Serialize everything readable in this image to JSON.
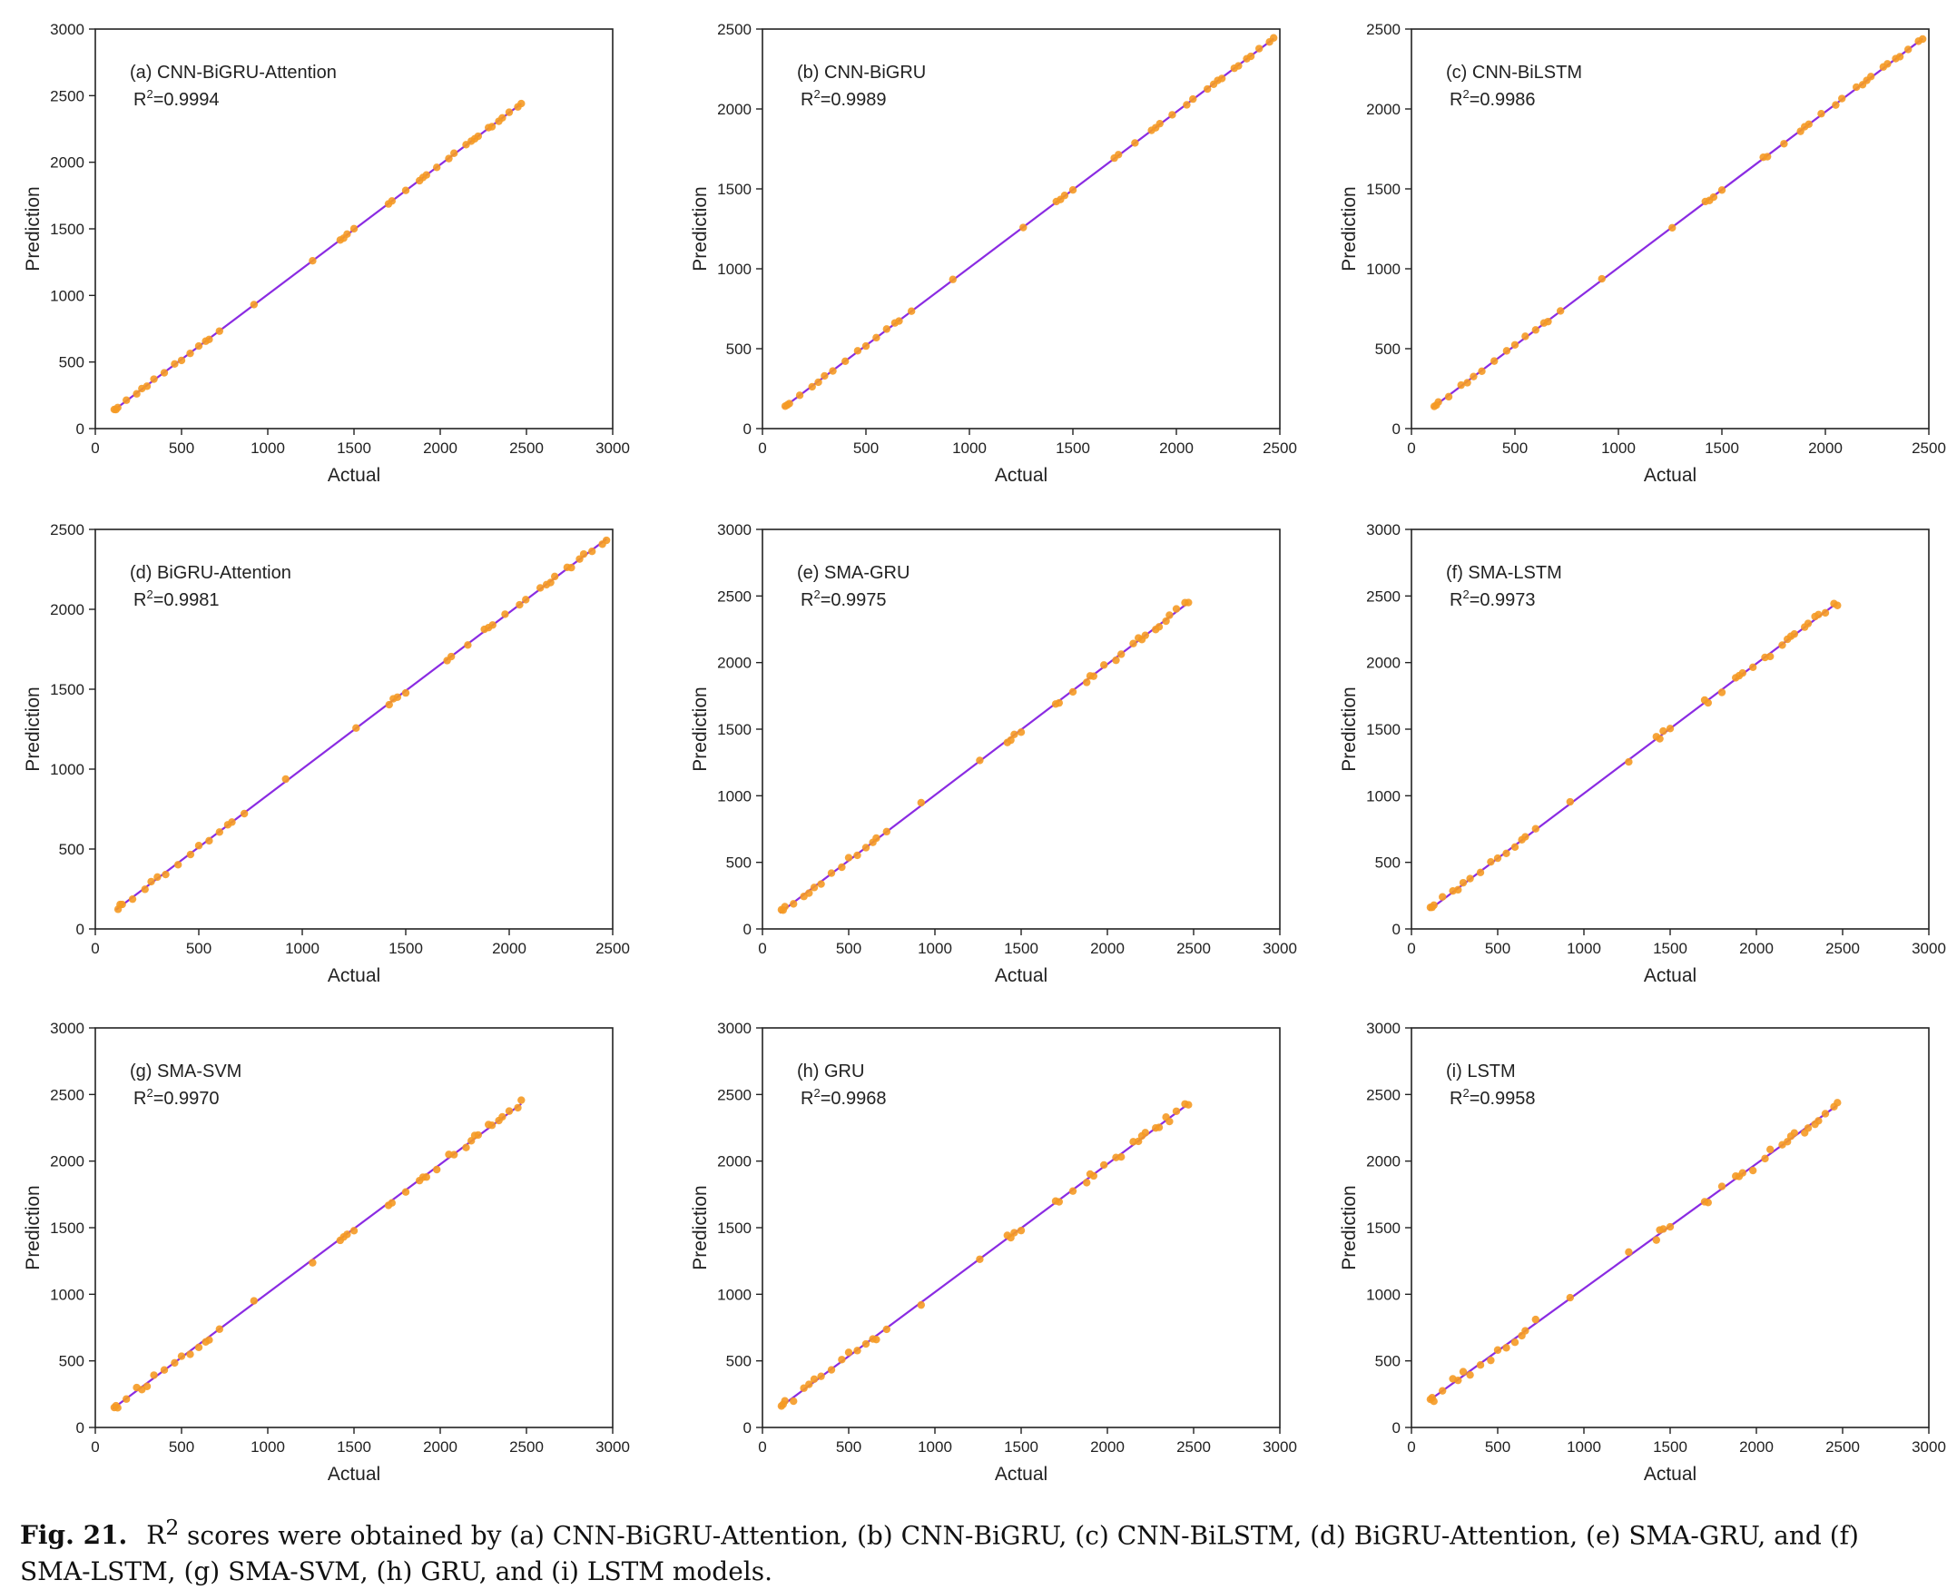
{
  "caption": {
    "fig_label": "Fig. 21.",
    "r": "R",
    "sup": "2",
    "text": " scores were obtained by (a) CNN-BiGRU-Attention, (b) CNN-BiGRU, (c) CNN-BiLSTM, (d) BiGRU-Attention, (e) SMA-GRU, and (f) SMA-LSTM, (g) SMA-SVM, (h) GRU, and (i) LSTM models."
  },
  "colors": {
    "fit_line": "#8a2be2",
    "points": "#f59a23",
    "axis": "#222222"
  },
  "chart_data": [
    {
      "id": "a",
      "type": "scatter",
      "title": "(a) CNN-BiGRU-Attention",
      "r2": "0.9994",
      "xlabel": "Actual",
      "ylabel": "Prediction",
      "xlim": [
        0,
        3000
      ],
      "ylim": [
        0,
        3000
      ],
      "xticks": [
        0,
        500,
        1000,
        1500,
        2000,
        2500,
        3000
      ],
      "yticks": [
        0,
        500,
        1000,
        1500,
        2000,
        2500,
        3000
      ],
      "fit": [
        [
          100,
          130
        ],
        [
          2470,
          2440
        ]
      ],
      "noise": 8,
      "x": [
        110,
        120,
        130,
        180,
        240,
        270,
        300,
        340,
        400,
        460,
        500,
        550,
        600,
        640,
        660,
        720,
        920,
        1260,
        1420,
        1440,
        1460,
        1500,
        1700,
        1720,
        1800,
        1880,
        1900,
        1920,
        1980,
        2050,
        2080,
        2150,
        2180,
        2200,
        2220,
        2280,
        2300,
        2340,
        2360,
        2400,
        2450,
        2470
      ]
    },
    {
      "id": "b",
      "type": "scatter",
      "title": "(b) CNN-BiGRU",
      "r2": "0.9989",
      "xlabel": "Actual",
      "ylabel": "Prediction",
      "xlim": [
        0,
        2500
      ],
      "ylim": [
        0,
        2500
      ],
      "xticks": [
        0,
        500,
        1000,
        1500,
        2000,
        2500
      ],
      "yticks": [
        0,
        500,
        1000,
        1500,
        2000,
        2500
      ],
      "fit": [
        [
          100,
          130
        ],
        [
          2470,
          2440
        ]
      ],
      "noise": 6,
      "x": [
        110,
        120,
        130,
        180,
        240,
        270,
        300,
        340,
        400,
        460,
        500,
        550,
        600,
        640,
        660,
        720,
        920,
        1260,
        1420,
        1440,
        1460,
        1500,
        1700,
        1720,
        1800,
        1880,
        1900,
        1920,
        1980,
        2050,
        2080,
        2150,
        2180,
        2200,
        2220,
        2280,
        2300,
        2340,
        2360,
        2400,
        2450,
        2470
      ]
    },
    {
      "id": "c",
      "type": "scatter",
      "title": "(c) CNN-BiLSTM",
      "r2": "0.9986",
      "xlabel": "Actual",
      "ylabel": "Prediction",
      "xlim": [
        0,
        2500
      ],
      "ylim": [
        0,
        2500
      ],
      "xticks": [
        0,
        500,
        1000,
        1500,
        2000,
        2500
      ],
      "yticks": [
        0,
        500,
        1000,
        1500,
        2000,
        2500
      ],
      "fit": [
        [
          100,
          130
        ],
        [
          2470,
          2440
        ]
      ],
      "noise": 9,
      "x": [
        110,
        120,
        130,
        180,
        240,
        270,
        300,
        340,
        400,
        460,
        500,
        550,
        600,
        640,
        660,
        720,
        920,
        1260,
        1420,
        1440,
        1460,
        1500,
        1700,
        1720,
        1800,
        1880,
        1900,
        1920,
        1980,
        2050,
        2080,
        2150,
        2180,
        2200,
        2220,
        2280,
        2300,
        2340,
        2360,
        2400,
        2450,
        2470
      ]
    },
    {
      "id": "d",
      "type": "scatter",
      "title": "(d) BiGRU-Attention",
      "r2": "0.9981",
      "xlabel": "Actual",
      "ylabel": "Prediction",
      "xlim": [
        0,
        2500
      ],
      "ylim": [
        0,
        2500
      ],
      "xticks": [
        0,
        500,
        1000,
        1500,
        2000,
        2500
      ],
      "yticks": [
        0,
        500,
        1000,
        1500,
        2000,
        2500
      ],
      "fit": [
        [
          100,
          120
        ],
        [
          2470,
          2440
        ]
      ],
      "noise": 15,
      "x": [
        110,
        120,
        130,
        180,
        240,
        270,
        300,
        340,
        400,
        460,
        500,
        550,
        600,
        640,
        660,
        720,
        920,
        1260,
        1420,
        1440,
        1460,
        1500,
        1700,
        1720,
        1800,
        1880,
        1900,
        1920,
        1980,
        2050,
        2080,
        2150,
        2180,
        2200,
        2220,
        2280,
        2300,
        2340,
        2360,
        2400,
        2450,
        2470
      ]
    },
    {
      "id": "e",
      "type": "scatter",
      "title": "(e) SMA-GRU",
      "r2": "0.9975",
      "xlabel": "Actual",
      "ylabel": "Prediction",
      "xlim": [
        0,
        3000
      ],
      "ylim": [
        0,
        3000
      ],
      "xticks": [
        0,
        500,
        1000,
        1500,
        2000,
        2500,
        3000
      ],
      "yticks": [
        0,
        500,
        1000,
        1500,
        2000,
        2500,
        3000
      ],
      "fit": [
        [
          100,
          120
        ],
        [
          2470,
          2450
        ]
      ],
      "noise": 22,
      "x": [
        110,
        120,
        130,
        180,
        240,
        270,
        300,
        340,
        400,
        460,
        500,
        550,
        600,
        640,
        660,
        720,
        920,
        1260,
        1420,
        1440,
        1460,
        1500,
        1700,
        1720,
        1800,
        1880,
        1900,
        1920,
        1980,
        2050,
        2080,
        2150,
        2180,
        2200,
        2220,
        2280,
        2300,
        2340,
        2360,
        2400,
        2450,
        2470
      ]
    },
    {
      "id": "f",
      "type": "scatter",
      "title": "(f) SMA-LSTM",
      "r2": "0.9973",
      "xlabel": "Actual",
      "ylabel": "Prediction",
      "xlim": [
        0,
        3000
      ],
      "ylim": [
        0,
        3000
      ],
      "xticks": [
        0,
        500,
        1000,
        1500,
        2000,
        2500,
        3000
      ],
      "yticks": [
        0,
        500,
        1000,
        1500,
        2000,
        2500,
        3000
      ],
      "fit": [
        [
          100,
          140
        ],
        [
          2470,
          2450
        ]
      ],
      "noise": 24,
      "x": [
        110,
        120,
        130,
        180,
        240,
        270,
        300,
        340,
        400,
        460,
        500,
        550,
        600,
        640,
        660,
        720,
        920,
        1260,
        1420,
        1440,
        1460,
        1500,
        1700,
        1720,
        1800,
        1880,
        1900,
        1920,
        1980,
        2050,
        2080,
        2150,
        2180,
        2200,
        2220,
        2280,
        2300,
        2340,
        2360,
        2400,
        2450,
        2470
      ]
    },
    {
      "id": "g",
      "type": "scatter",
      "title": "(g) SMA-SVM",
      "r2": "0.9970",
      "xlabel": "Actual",
      "ylabel": "Prediction",
      "xlim": [
        0,
        3000
      ],
      "ylim": [
        0,
        3000
      ],
      "xticks": [
        0,
        500,
        1000,
        1500,
        2000,
        2500,
        3000
      ],
      "yticks": [
        0,
        500,
        1000,
        1500,
        2000,
        2500,
        3000
      ],
      "fit": [
        [
          100,
          140
        ],
        [
          2470,
          2430
        ]
      ],
      "noise": 28,
      "x": [
        110,
        120,
        130,
        180,
        240,
        270,
        300,
        340,
        400,
        460,
        500,
        550,
        600,
        640,
        660,
        720,
        920,
        1260,
        1420,
        1440,
        1460,
        1500,
        1700,
        1720,
        1800,
        1880,
        1900,
        1920,
        1980,
        2050,
        2080,
        2150,
        2180,
        2200,
        2220,
        2280,
        2300,
        2340,
        2360,
        2400,
        2450,
        2470
      ]
    },
    {
      "id": "h",
      "type": "scatter",
      "title": "(h) GRU",
      "r2": "0.9968",
      "xlabel": "Actual",
      "ylabel": "Prediction",
      "xlim": [
        0,
        3000
      ],
      "ylim": [
        0,
        3000
      ],
      "xticks": [
        0,
        500,
        1000,
        1500,
        2000,
        2500,
        3000
      ],
      "yticks": [
        0,
        500,
        1000,
        1500,
        2000,
        2500,
        3000
      ],
      "fit": [
        [
          100,
          150
        ],
        [
          2470,
          2430
        ]
      ],
      "noise": 30,
      "x": [
        110,
        120,
        130,
        180,
        240,
        270,
        300,
        340,
        400,
        460,
        500,
        550,
        600,
        640,
        660,
        720,
        920,
        1260,
        1420,
        1440,
        1460,
        1500,
        1700,
        1720,
        1800,
        1880,
        1900,
        1920,
        1980,
        2050,
        2080,
        2150,
        2180,
        2200,
        2220,
        2280,
        2300,
        2340,
        2360,
        2400,
        2450,
        2470
      ]
    },
    {
      "id": "i",
      "type": "scatter",
      "title": "(i) LSTM",
      "r2": "0.9958",
      "xlabel": "Actual",
      "ylabel": "Prediction",
      "xlim": [
        0,
        3000
      ],
      "ylim": [
        0,
        3000
      ],
      "xticks": [
        0,
        500,
        1000,
        1500,
        2000,
        2500,
        3000
      ],
      "yticks": [
        0,
        500,
        1000,
        1500,
        2000,
        2500,
        3000
      ],
      "fit": [
        [
          100,
          200
        ],
        [
          2470,
          2420
        ]
      ],
      "noise": 36,
      "x": [
        110,
        120,
        130,
        180,
        240,
        270,
        300,
        340,
        400,
        460,
        500,
        550,
        600,
        640,
        660,
        720,
        920,
        1260,
        1420,
        1440,
        1460,
        1500,
        1700,
        1720,
        1800,
        1880,
        1900,
        1920,
        1980,
        2050,
        2080,
        2150,
        2180,
        2200,
        2220,
        2280,
        2300,
        2340,
        2360,
        2400,
        2450,
        2470
      ]
    }
  ]
}
